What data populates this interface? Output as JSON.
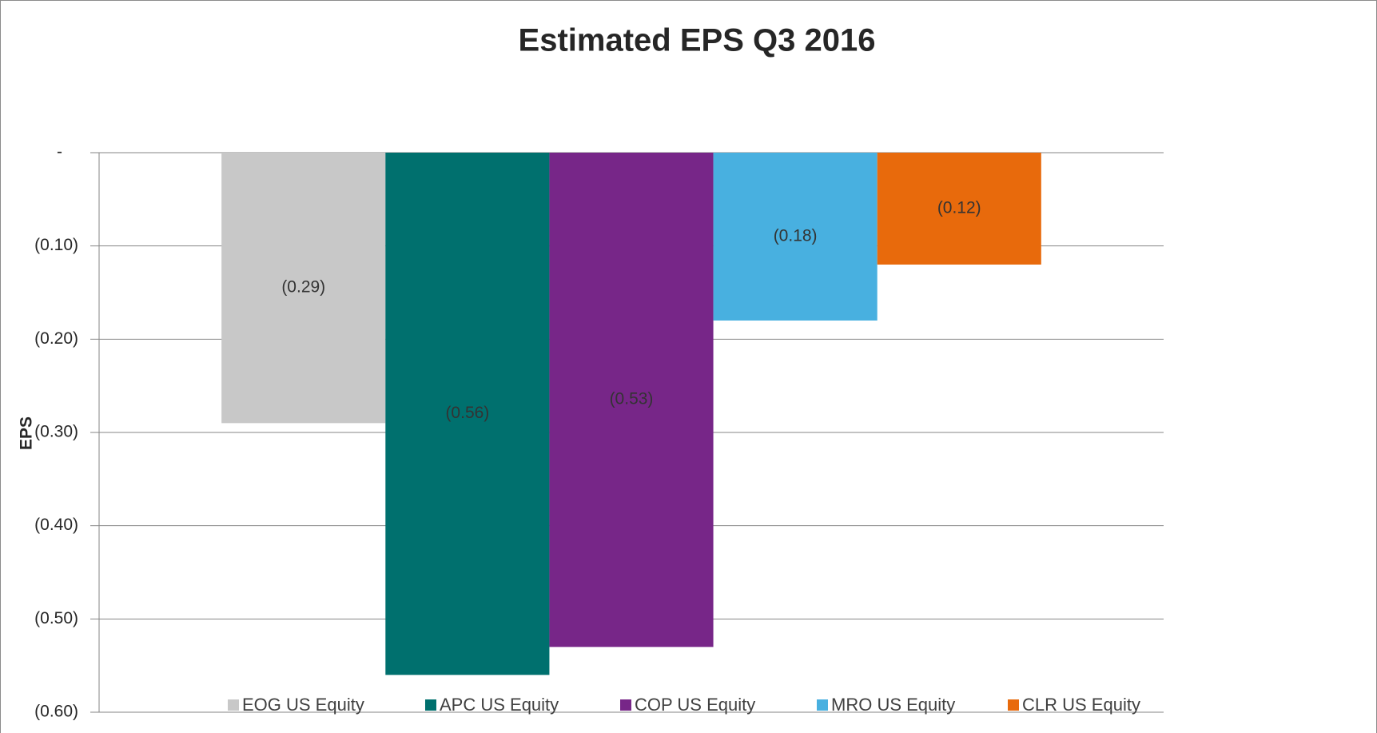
{
  "chart_data": {
    "type": "bar",
    "title": "Estimated EPS Q3 2016",
    "y_label": "EPS",
    "categories": [
      null
    ],
    "series": [
      {
        "name": "EOG US Equity",
        "color": "#c8c8c8",
        "values": [
          -0.29
        ],
        "value_labels": [
          "(0.29)"
        ]
      },
      {
        "name": "APC US Equity",
        "color": "#00706e",
        "values": [
          -0.56
        ],
        "value_labels": [
          "(0.56)"
        ]
      },
      {
        "name": "COP US Equity",
        "color": "#772688",
        "values": [
          -0.53
        ],
        "value_labels": [
          "(0.53)"
        ]
      },
      {
        "name": "MRO US Equity",
        "color": "#48b0e0",
        "values": [
          -0.18
        ],
        "value_labels": [
          "(0.18)"
        ]
      },
      {
        "name": "CLR US Equity",
        "color": "#e86a0c",
        "values": [
          -0.12
        ],
        "value_labels": [
          "(0.12)"
        ]
      }
    ],
    "ylim": [
      -0.6,
      0
    ],
    "yticks": [
      {
        "value": 0,
        "label": "-"
      },
      {
        "value": -0.1,
        "label": "(0.10)"
      },
      {
        "value": -0.2,
        "label": "(0.20)"
      },
      {
        "value": -0.3,
        "label": "(0.30)"
      },
      {
        "value": -0.4,
        "label": "(0.40)"
      },
      {
        "value": -0.5,
        "label": "(0.50)"
      },
      {
        "value": -0.6,
        "label": "(0.60)"
      }
    ],
    "grid": true,
    "legend": "bottom"
  }
}
